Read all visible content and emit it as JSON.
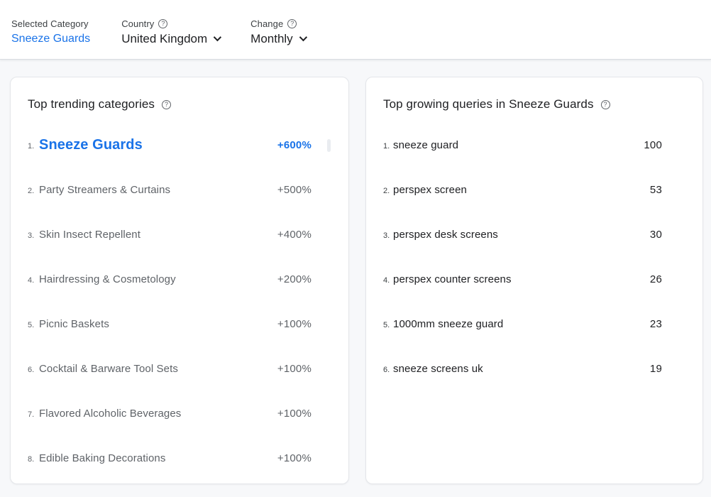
{
  "header": {
    "selected_category": {
      "label": "Selected Category",
      "value": "Sneeze Guards"
    },
    "country": {
      "label": "Country",
      "value": "United Kingdom",
      "help_glyph": "?"
    },
    "change": {
      "label": "Change",
      "value": "Monthly",
      "help_glyph": "?"
    }
  },
  "trending_card": {
    "title": "Top trending categories",
    "help_glyph": "?",
    "items": [
      {
        "rank": "1.",
        "name": "Sneeze Guards",
        "change": "+600%",
        "selected": true
      },
      {
        "rank": "2.",
        "name": "Party Streamers & Curtains",
        "change": "+500%",
        "selected": false
      },
      {
        "rank": "3.",
        "name": "Skin Insect Repellent",
        "change": "+400%",
        "selected": false
      },
      {
        "rank": "4.",
        "name": "Hairdressing & Cosmetology",
        "change": "+200%",
        "selected": false
      },
      {
        "rank": "5.",
        "name": "Picnic Baskets",
        "change": "+100%",
        "selected": false
      },
      {
        "rank": "6.",
        "name": "Cocktail & Barware Tool Sets",
        "change": "+100%",
        "selected": false
      },
      {
        "rank": "7.",
        "name": "Flavored Alcoholic Beverages",
        "change": "+100%",
        "selected": false
      },
      {
        "rank": "8.",
        "name": "Edible Baking Decorations",
        "change": "+100%",
        "selected": false
      }
    ]
  },
  "queries_card": {
    "title": "Top growing queries in Sneeze Guards",
    "help_glyph": "?",
    "bar_max": 100,
    "items": [
      {
        "rank": "1.",
        "query": "sneeze guard",
        "value": 100
      },
      {
        "rank": "2.",
        "query": "perspex screen",
        "value": 53
      },
      {
        "rank": "3.",
        "query": "perspex desk screens",
        "value": 30
      },
      {
        "rank": "4.",
        "query": "perspex counter screens",
        "value": 26
      },
      {
        "rank": "5.",
        "query": "1000mm sneeze guard",
        "value": 23
      },
      {
        "rank": "6.",
        "query": "sneeze screens uk",
        "value": 19
      }
    ]
  },
  "colors": {
    "accent_blue": "#1a73e8",
    "bar_fill": "#4285f4",
    "bar_border": "#2a6ae0",
    "track_line": "#1b1e23",
    "muted_text": "#5f6368",
    "dark_text": "#202124",
    "page_bg": "#f7f8fa"
  }
}
